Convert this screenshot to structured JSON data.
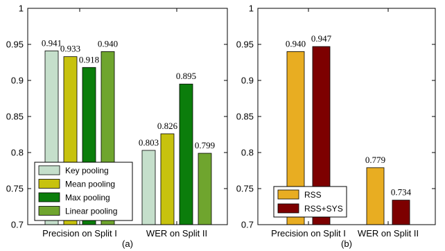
{
  "chart_data": [
    {
      "type": "bar",
      "panel_label": "(a)",
      "categories": [
        "Precision on Split I",
        "WER on Split II"
      ],
      "series": [
        {
          "name": "Key pooling",
          "color": "#c5dfcb",
          "values": [
            0.941,
            0.803
          ]
        },
        {
          "name": "Mean pooling",
          "color": "#c7c20e",
          "values": [
            0.933,
            0.826
          ]
        },
        {
          "name": "Max pooling",
          "color": "#0b7d0b",
          "values": [
            0.918,
            0.895
          ]
        },
        {
          "name": "Linear pooling",
          "color": "#6fa52e",
          "values": [
            0.94,
            0.799
          ]
        }
      ],
      "data_labels": [
        [
          "0.941",
          "0.933",
          "0.918",
          "0.940"
        ],
        [
          "0.803",
          "0.826",
          "0.895",
          "0.799"
        ]
      ],
      "yticks": [
        "0.7",
        "0.75",
        "0.8",
        "0.85",
        "0.9",
        "0.95",
        "1"
      ],
      "ylim": [
        0.7,
        1.0
      ],
      "legend": "bottom-left",
      "grid": false
    },
    {
      "type": "bar",
      "panel_label": "(b)",
      "categories": [
        "Precision on Split I",
        "WER on Split II"
      ],
      "series": [
        {
          "name": "RSS",
          "color": "#e8ad22",
          "values": [
            0.94,
            0.779
          ]
        },
        {
          "name": "RSS+SYS",
          "color": "#7d0000",
          "values": [
            0.947,
            0.734
          ]
        }
      ],
      "data_labels": [
        [
          "0.940",
          "0.947"
        ],
        [
          "0.779",
          "0.734"
        ]
      ],
      "yticks": [
        "0.7",
        "0.75",
        "0.8",
        "0.85",
        "0.9",
        "0.95",
        "1"
      ],
      "ylim": [
        0.7,
        1.0
      ],
      "legend": "bottom-left",
      "grid": false
    }
  ]
}
